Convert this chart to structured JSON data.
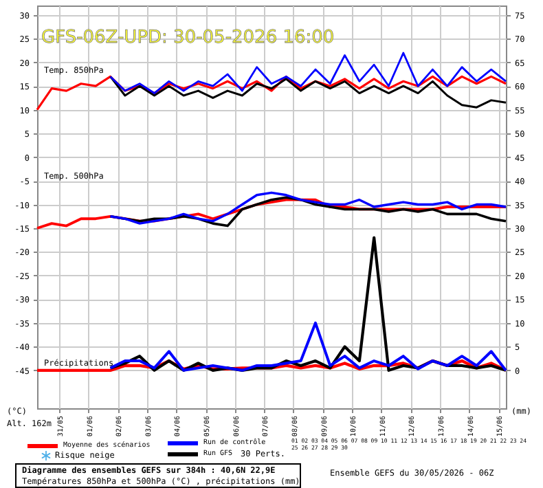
{
  "chart_data": {
    "type": "line",
    "title": "GFS-06Z-UPD: 30-05-2026 16:00",
    "x": [
      "2026-05-30T06:00",
      "2026-05-30T18:00",
      "2026-05-31T06:00",
      "2026-05-31T18:00",
      "2026-06-01T06:00",
      "2026-06-01T18:00",
      "2026-06-02T06:00",
      "2026-06-02T18:00",
      "2026-06-03T06:00",
      "2026-06-03T18:00",
      "2026-06-04T06:00",
      "2026-06-04T18:00",
      "2026-06-05T06:00",
      "2026-06-05T18:00",
      "2026-06-06T06:00",
      "2026-06-06T18:00",
      "2026-06-07T06:00",
      "2026-06-07T18:00",
      "2026-06-08T06:00",
      "2026-06-08T18:00",
      "2026-06-09T06:00",
      "2026-06-09T18:00",
      "2026-06-10T06:00",
      "2026-06-10T18:00",
      "2026-06-11T06:00",
      "2026-06-11T18:00",
      "2026-06-12T06:00",
      "2026-06-12T18:00",
      "2026-06-13T06:00",
      "2026-06-13T18:00",
      "2026-06-14T06:00",
      "2026-06-14T18:00",
      "2026-06-15T06:00"
    ],
    "series": [
      {
        "color": "#0000ff",
        "values": [
          null,
          null,
          null,
          null,
          null,
          17,
          14,
          15.5,
          13.5,
          16,
          14,
          16,
          15,
          17.5,
          14,
          19,
          15.5,
          17,
          15,
          18.5,
          15.5,
          21.5,
          16,
          19.5,
          15,
          22,
          15,
          18.5,
          15,
          19,
          16,
          18.5,
          16
        ]
      },
      {
        "color": "#000000",
        "values": [
          null,
          null,
          null,
          null,
          null,
          17,
          13,
          15,
          13,
          15,
          13,
          14,
          12.5,
          14,
          13,
          15.5,
          14.5,
          16.5,
          14,
          16,
          14.5,
          16,
          13.5,
          15,
          13.5,
          15,
          13.5,
          16,
          13,
          11,
          10.5,
          12,
          11.5
        ]
      },
      {
        "color": "#ff0000",
        "values": [
          10,
          14.5,
          14,
          15.5,
          15,
          17,
          14,
          15,
          13.5,
          15.5,
          14.5,
          15.5,
          14.5,
          16,
          14.5,
          16,
          14,
          17,
          14.5,
          16,
          15,
          16.5,
          14.5,
          16.5,
          14.5,
          16,
          15,
          17,
          15,
          17,
          15.5,
          17,
          15.5
        ]
      },
      {
        "color": "#0000ff",
        "values": [
          null,
          null,
          null,
          null,
          null,
          -12.5,
          -13,
          -14,
          -13.5,
          -13,
          -12,
          -13,
          -13.5,
          -12,
          -10,
          -8,
          -7.5,
          -8,
          -9,
          -9.5,
          -10,
          -10,
          -9,
          -10.5,
          -10,
          -9.5,
          -10,
          -10,
          -9.5,
          -11,
          -10,
          -10,
          -10.5
        ]
      },
      {
        "color": "#000000",
        "values": [
          null,
          null,
          null,
          null,
          null,
          -12.5,
          -13,
          -13.5,
          -13,
          -13,
          -12.5,
          -13,
          -14,
          -14.5,
          -11,
          -10,
          -9,
          -8.5,
          -9,
          -10,
          -10.5,
          -11,
          -11,
          -11,
          -11.5,
          -11,
          -11.5,
          -11,
          -12,
          -12,
          -12,
          -13,
          -13.5
        ]
      },
      {
        "color": "#ff0000",
        "values": [
          -15,
          -14,
          -14.5,
          -13,
          -13,
          -12.5,
          -13,
          -13.5,
          -13.5,
          -13,
          -12.5,
          -12,
          -13,
          -12,
          -11,
          -10,
          -9.5,
          -9,
          -9,
          -9,
          -10.5,
          -10.5,
          -11,
          -11,
          -11,
          -11,
          -11,
          -11,
          -10.5,
          -10.5,
          -10.5,
          -10.5,
          -10.5
        ]
      },
      {
        "axis": "y2",
        "name": "Run de contrôle",
        "color": "#0000ff",
        "values": [
          null,
          null,
          null,
          null,
          null,
          0.5,
          2,
          2,
          0.5,
          4,
          0,
          0.5,
          1,
          0.5,
          0,
          1,
          1,
          1.5,
          2,
          10,
          1,
          3,
          0.5,
          2,
          1,
          3,
          0.3,
          2,
          1,
          3,
          1,
          4,
          0
        ]
      },
      {
        "axis": "y2",
        "name": "Run GFS",
        "color": "#000000",
        "values": [
          null,
          null,
          null,
          null,
          null,
          0.5,
          1.5,
          3,
          0,
          2,
          0,
          1.5,
          0,
          0.5,
          0,
          0.5,
          0.5,
          2,
          1,
          2,
          0.5,
          5,
          2,
          28,
          0,
          1,
          0.5,
          2,
          1,
          1,
          0.5,
          1,
          0
        ]
      },
      {
        "axis": "y2",
        "name": "Moyenne des scénarios",
        "color": "#ff0000",
        "values": [
          0,
          0,
          0,
          0,
          0,
          0,
          1,
          1,
          0.5,
          2,
          0.3,
          1,
          0.3,
          0.3,
          0.5,
          0.5,
          0.5,
          1,
          0.5,
          1,
          0.5,
          1.5,
          0.3,
          1,
          1,
          1.5,
          0.5,
          2,
          1,
          2,
          0.5,
          1.5,
          0
        ]
      }
    ],
    "xlim": [
      "2026-05-30T06:00",
      "2026-06-15T06:00"
    ],
    "xticks": [
      {
        "value": "2026-05-31",
        "label": "31/05"
      },
      {
        "value": "2026-06-01",
        "label": "01/06"
      },
      {
        "value": "2026-06-02",
        "label": "02/06"
      },
      {
        "value": "2026-06-03",
        "label": "03/06"
      },
      {
        "value": "2026-06-04",
        "label": "04/06"
      },
      {
        "value": "2026-06-05",
        "label": "05/06"
      },
      {
        "value": "2026-06-06",
        "label": "06/06"
      },
      {
        "value": "2026-06-07",
        "label": "07/06"
      },
      {
        "value": "2026-06-08",
        "label": "08/06"
      },
      {
        "value": "2026-06-09",
        "label": "09/06"
      },
      {
        "value": "2026-06-10",
        "label": "10/06"
      },
      {
        "value": "2026-06-11",
        "label": "11/06"
      },
      {
        "value": "2026-06-12",
        "label": "12/06"
      },
      {
        "value": "2026-06-13",
        "label": "13/06"
      },
      {
        "value": "2026-06-14",
        "label": "14/06"
      },
      {
        "value": "2026-06-15",
        "label": "15/06"
      }
    ],
    "ylim": [
      -53,
      32
    ],
    "yticks": [
      -45,
      -40,
      -35,
      -30,
      -25,
      -20,
      -15,
      -10,
      -5,
      0,
      5,
      10,
      15,
      20,
      25,
      30
    ],
    "y2lim": [
      -8,
      77
    ],
    "y2ticks": [
      0,
      5,
      10,
      15,
      20,
      25,
      30,
      35,
      40,
      45,
      50,
      55,
      60,
      65,
      70,
      75
    ],
    "grid": true,
    "legend": "bottom",
    "annotations": [
      "Temp. 850hPa",
      "Temp. 500hPa",
      "Précipitations",
      "(°C)",
      "(mm)",
      "Alt. 162m",
      "Risque neige",
      "30 Perts.",
      "01 02 03 04 05 06 07 08 09 10 11 12 13 14 15 16 17 18 19 20 21 22 23 24 25 26 27 28 29 30",
      "Diagramme des ensembles GEFS sur 384h : 40,6N 22,9E",
      "Températures 850hPa et 500hPa (°C) , précipitations (mm)",
      "Ensemble GEFS du 30/05/2026 - 06Z"
    ]
  }
}
